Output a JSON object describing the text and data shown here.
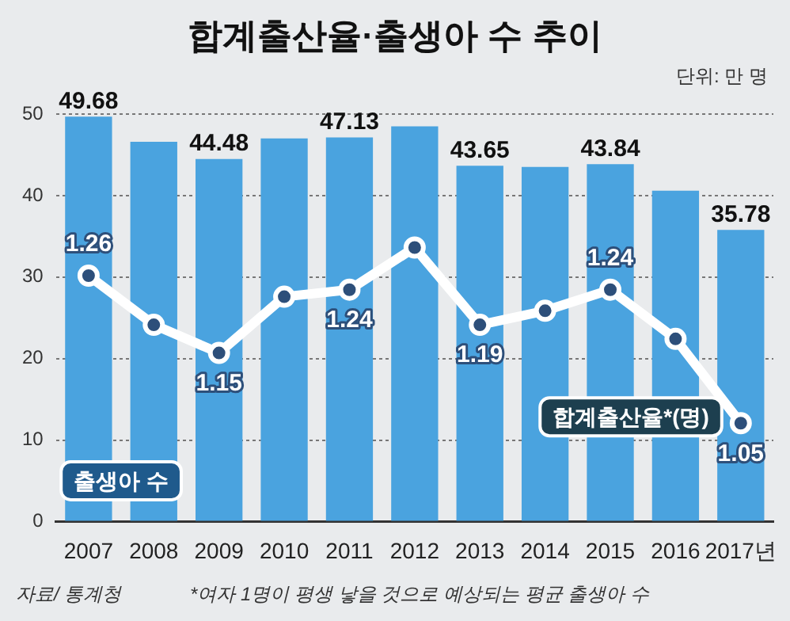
{
  "chart_data": {
    "type": "bar",
    "title": "합계출산율·출생아 수 추이",
    "categories": [
      "2007",
      "2008",
      "2009",
      "2010",
      "2011",
      "2012",
      "2013",
      "2014",
      "2015",
      "2016",
      "2017년"
    ],
    "series": [
      {
        "name": "출생아 수",
        "color": "#4aa3df",
        "values": [
          49.68,
          46.6,
          44.48,
          47.0,
          47.13,
          48.5,
          43.65,
          43.5,
          43.84,
          40.6,
          35.78
        ],
        "value_labels": [
          "49.68",
          null,
          "44.48",
          null,
          "47.13",
          null,
          "43.65",
          null,
          "43.84",
          null,
          "35.78"
        ]
      },
      {
        "name": "합계출산율*(명)",
        "type": "line",
        "axis": "y2",
        "color": "#ffffff",
        "marker": "circle",
        "values": [
          1.26,
          1.19,
          1.15,
          1.23,
          1.24,
          1.3,
          1.19,
          1.21,
          1.24,
          1.17,
          1.05
        ],
        "value_labels": [
          "1.26",
          null,
          "1.15",
          null,
          "1.24",
          null,
          "1.19",
          null,
          "1.24",
          null,
          "1.05"
        ]
      }
    ],
    "ylim": [
      0,
      50
    ],
    "yticks": [
      0,
      10,
      20,
      30,
      40,
      50
    ],
    "y2lim": [
      0.91,
      1.49
    ],
    "grid": "y",
    "legend": false,
    "annotations": [
      "단위: 만 명",
      "자료/ 통계청",
      "*여자 1명이 평생 낳을 것으로 예상되는 평균 출생아 수"
    ]
  }
}
